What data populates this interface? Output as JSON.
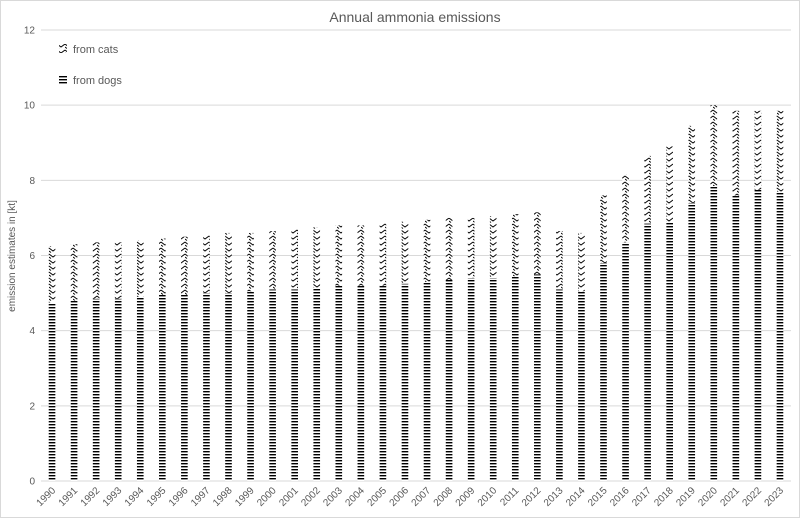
{
  "chart_data": {
    "type": "bar",
    "stacked": true,
    "title": "Annual ammonia emissions",
    "ylabel": "emission estimates in [kt]",
    "xlabel": "",
    "ylim": [
      0,
      12
    ],
    "yticks": [
      0,
      2,
      4,
      6,
      8,
      10,
      12
    ],
    "grid": true,
    "legend_position": "top-left",
    "categories": [
      "1990",
      "1991",
      "1992",
      "1993",
      "1994",
      "1995",
      "1996",
      "1997",
      "1998",
      "1999",
      "2000",
      "2001",
      "2002",
      "2003",
      "2004",
      "2005",
      "2006",
      "2007",
      "2008",
      "2009",
      "2010",
      "2011",
      "2012",
      "2013",
      "2014",
      "2015",
      "2016",
      "2017",
      "2018",
      "2019",
      "2020",
      "2021",
      "2022",
      "2023"
    ],
    "series": [
      {
        "name": "from dogs",
        "pattern": "horizontal-lines",
        "color": "#000000",
        "values": [
          4.75,
          4.8,
          4.85,
          4.85,
          4.9,
          4.95,
          4.95,
          5.0,
          5.0,
          5.05,
          5.1,
          5.1,
          5.15,
          5.2,
          5.2,
          5.2,
          5.25,
          5.3,
          5.35,
          5.4,
          5.4,
          5.45,
          5.5,
          5.1,
          5.05,
          5.8,
          6.35,
          6.85,
          6.9,
          7.4,
          7.85,
          7.6,
          7.75,
          7.7
        ]
      },
      {
        "name": "from cats",
        "pattern": "zigzag",
        "color": "#000000",
        "values": [
          1.5,
          1.5,
          1.5,
          1.5,
          1.5,
          1.5,
          1.55,
          1.55,
          1.6,
          1.55,
          1.55,
          1.6,
          1.6,
          1.6,
          1.6,
          1.65,
          1.65,
          1.65,
          1.65,
          1.6,
          1.65,
          1.65,
          1.65,
          1.55,
          1.55,
          1.8,
          1.8,
          1.8,
          2.0,
          2.05,
          2.15,
          2.25,
          2.1,
          2.15
        ]
      }
    ]
  }
}
